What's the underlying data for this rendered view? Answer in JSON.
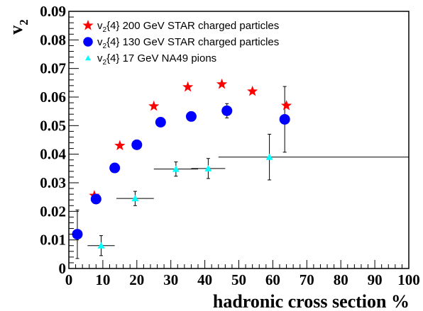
{
  "chart_data": {
    "type": "scatter",
    "xlabel": "hadronic cross section %",
    "ylabel": "v",
    "ylabel_sub": "2",
    "xlim": [
      0,
      100
    ],
    "ylim": [
      0,
      0.09
    ],
    "x_ticks": [
      "0",
      "10",
      "20",
      "30",
      "40",
      "50",
      "60",
      "70",
      "80",
      "90",
      "100"
    ],
    "y_ticks": [
      "0",
      "0.01",
      "0.02",
      "0.03",
      "0.04",
      "0.05",
      "0.06",
      "0.07",
      "0.08",
      "0.09"
    ],
    "legend_position": "top-left",
    "series": [
      {
        "name": "v2{4} 200 GeV STAR charged particles",
        "name_parts": [
          "v",
          "2",
          "{4} 200 GeV STAR charged particles"
        ],
        "marker": "star",
        "color": "#ff0000",
        "points": [
          {
            "x": 7.5,
            "y": 0.0255
          },
          {
            "x": 15,
            "y": 0.043
          },
          {
            "x": 25,
            "y": 0.0568
          },
          {
            "x": 35,
            "y": 0.0635
          },
          {
            "x": 45,
            "y": 0.0645
          },
          {
            "x": 54,
            "y": 0.062
          },
          {
            "x": 64,
            "y": 0.057
          }
        ]
      },
      {
        "name": "v2{4} 130 GeV STAR charged particles",
        "name_parts": [
          "v",
          "2",
          "{4} 130 GeV STAR charged particles"
        ],
        "marker": "circle",
        "color": "#0000ff",
        "points": [
          {
            "x": 2.5,
            "y": 0.012,
            "yerr_lo": 0.0085,
            "yerr_hi": 0.0085
          },
          {
            "x": 8,
            "y": 0.0243,
            "yerr_lo": 0.0015,
            "yerr_hi": 0.0015
          },
          {
            "x": 13.5,
            "y": 0.0352
          },
          {
            "x": 20,
            "y": 0.0433
          },
          {
            "x": 27,
            "y": 0.0512
          },
          {
            "x": 36,
            "y": 0.0532
          },
          {
            "x": 46.5,
            "y": 0.0552,
            "yerr_lo": 0.0025,
            "yerr_hi": 0.0025
          },
          {
            "x": 63.5,
            "y": 0.0522,
            "yerr_lo": 0.0115,
            "yerr_hi": 0.0115
          }
        ]
      },
      {
        "name": "v2{4} 17 GeV NA49 pions",
        "name_parts": [
          "v",
          "2",
          "{4} 17 GeV NA49 pions"
        ],
        "marker": "triangle",
        "color": "#00ffff",
        "points": [
          {
            "x": 9.5,
            "y": 0.008,
            "xerr_lo": 4,
            "xerr_hi": 4,
            "yerr_lo": 0.0035,
            "yerr_hi": 0.0035
          },
          {
            "x": 19.5,
            "y": 0.0245,
            "xerr_lo": 5.5,
            "xerr_hi": 5.5,
            "yerr_lo": 0.0025,
            "yerr_hi": 0.0025
          },
          {
            "x": 31.5,
            "y": 0.0348,
            "xerr_lo": 6.5,
            "xerr_hi": 6.5,
            "yerr_lo": 0.0025,
            "yerr_hi": 0.0025
          },
          {
            "x": 41,
            "y": 0.035,
            "xerr_lo": 5,
            "xerr_hi": 5,
            "yerr_lo": 0.0035,
            "yerr_hi": 0.0035
          },
          {
            "x": 59,
            "y": 0.039,
            "xerr_lo": 15,
            "xerr_hi": 41,
            "yerr_lo": 0.008,
            "yerr_hi": 0.008
          }
        ]
      }
    ]
  }
}
